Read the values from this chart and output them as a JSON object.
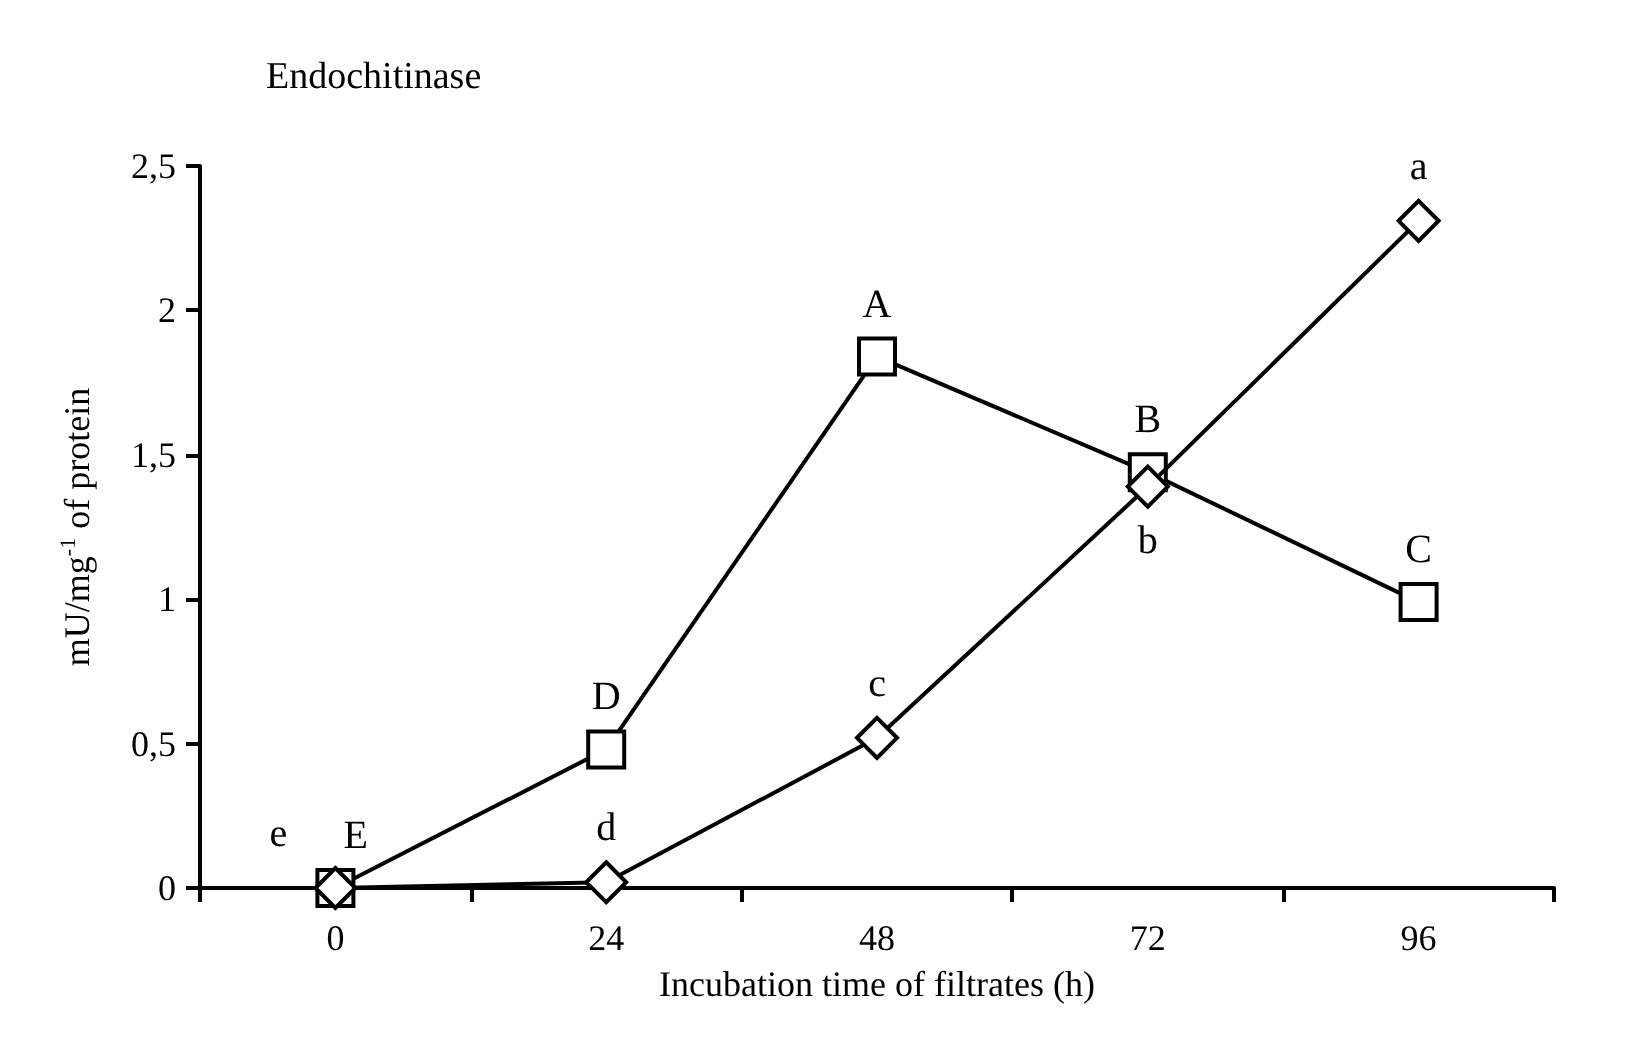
{
  "chart_data": {
    "type": "line",
    "title": "Endochitinase",
    "xlabel": "Incubation time of filtrates (h)",
    "ylabel": "mU/mg$^{-1}$ of protein",
    "categories": [
      "0",
      "24",
      "48",
      "72",
      "96"
    ],
    "series": [
      {
        "color": "#000000",
        "marker": "square",
        "values": [
          0,
          0.48,
          1.84,
          1.44,
          0.99
        ],
        "value_labels": [
          "E",
          "D",
          "A",
          "B",
          "C"
        ]
      },
      {
        "color": "#000000",
        "marker": "diamond",
        "values": [
          0,
          0.02,
          0.52,
          1.39,
          2.31
        ],
        "value_labels": [
          "e",
          "d",
          "c",
          "b",
          "a"
        ]
      }
    ],
    "ylim": [
      0,
      2.5
    ],
    "yticks": [
      {
        "value": 0,
        "label": "0"
      },
      {
        "value": 0.5,
        "label": "0,5"
      },
      {
        "value": 1,
        "label": "1"
      },
      {
        "value": 1.5,
        "label": "1,5"
      },
      {
        "value": 2,
        "label": "2"
      },
      {
        "value": 2.5,
        "label": "2,5"
      }
    ],
    "grid": false,
    "line_style": "solid"
  }
}
